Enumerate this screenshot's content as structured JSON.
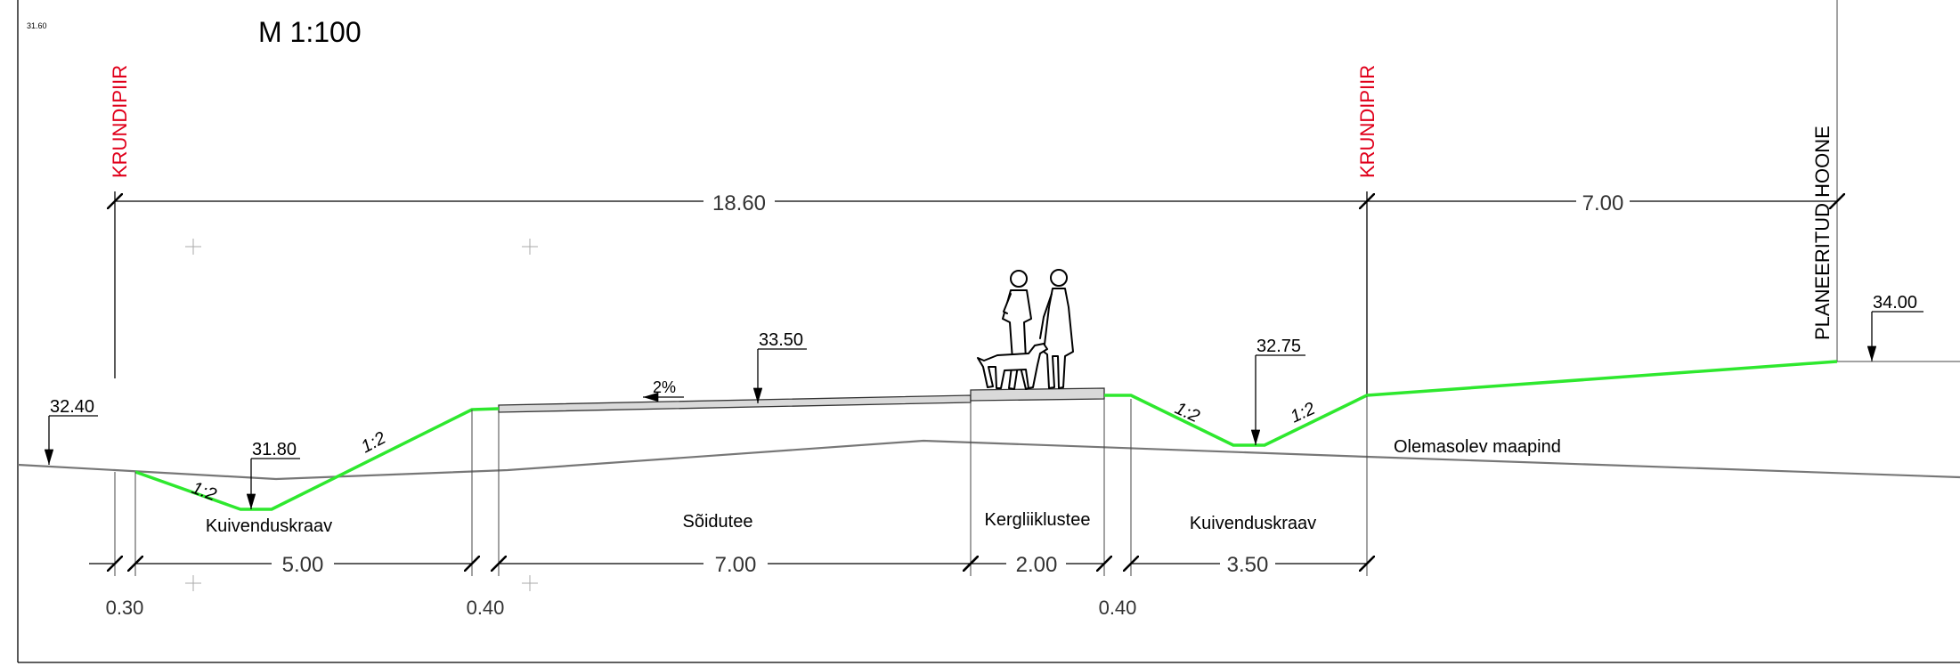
{
  "drawing": {
    "scale_label": "M 1:100",
    "corner_note": "31.60"
  },
  "boundaries": {
    "left_label": "KRUNDIPIIR",
    "right_label": "KRUNDIPIIR",
    "building_label": "PLANEERITUD HOONE"
  },
  "top_dimensions": {
    "total_width": "18.60",
    "to_building": "7.00"
  },
  "elevations": {
    "left_edge": "32.40",
    "left_ditch_bottom": "31.80",
    "road_top": "33.50",
    "right_ditch_bottom": "32.75",
    "building": "34.00"
  },
  "slopes": {
    "left_inner": "1:2",
    "left_outer": "1:2",
    "right_inner": "1:2",
    "right_outer": "1:2",
    "road_cross_fall": "2%"
  },
  "zones": {
    "left_ditch": "Kuivenduskraav",
    "carriageway": "Sõidutee",
    "cycle_path": "Kergliiklustee",
    "right_ditch": "Kuivenduskraav",
    "existing_ground": "Olemasolev maapind"
  },
  "bottom_dimensions": {
    "left_offset": "0.30",
    "left_ditch_width": "5.00",
    "left_gap": "0.40",
    "road_width": "7.00",
    "path_width": "2.00",
    "right_gap": "0.40",
    "right_ditch_width": "3.50"
  },
  "colors": {
    "boundary_text": "#e0001b",
    "design_profile": "#2ee82e",
    "existing_ground": "#777777"
  }
}
